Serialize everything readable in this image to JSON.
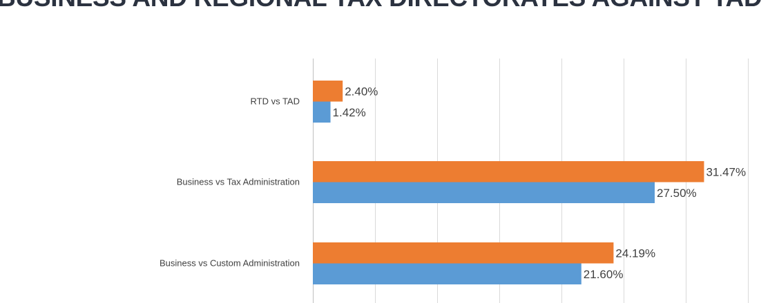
{
  "chart_data": {
    "type": "bar",
    "orientation": "horizontal",
    "title": "BUSINESS AND REGIONAL TAX DIRECTORATES AGAINST TAD",
    "categories": [
      "RTD vs TAD",
      "Business vs Tax Administration",
      "Business vs Custom Administration"
    ],
    "series": [
      {
        "color": "#ED7D31",
        "values": [
          2.4,
          31.47,
          24.19
        ],
        "labels": [
          "2.40%",
          "31.47%",
          "24.19%"
        ]
      },
      {
        "color": "#5B9BD5",
        "values": [
          1.42,
          27.5,
          21.6
        ],
        "labels": [
          "1.42%",
          "27.50%",
          "21.60%"
        ]
      }
    ],
    "xlim": [
      0,
      35
    ],
    "x_grid_step": 5,
    "unit": "%",
    "grid": true,
    "xlabel": "",
    "ylabel": ""
  }
}
